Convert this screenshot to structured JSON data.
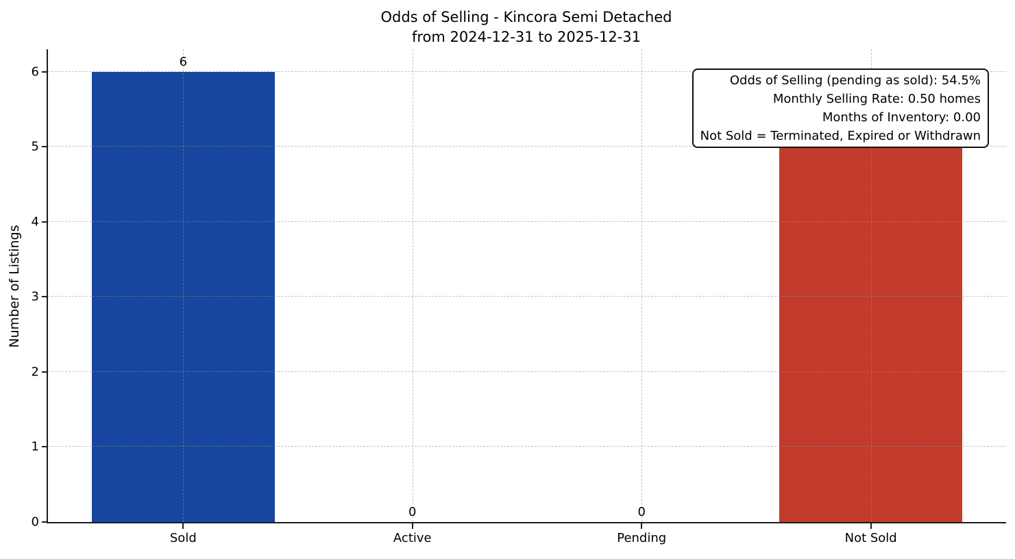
{
  "title": {
    "line1": "Odds of Selling - Kincora Semi Detached",
    "line2": "from 2024-12-31 to 2025-12-31"
  },
  "chart_data": {
    "type": "bar",
    "title": "Odds of Selling - Kincora Semi Detached\nfrom 2024-12-31 to 2025-12-31",
    "categories": [
      "Sold",
      "Active",
      "Pending",
      "Not Sold"
    ],
    "values": [
      6,
      0,
      0,
      5
    ],
    "bar_labels": [
      "6",
      "0",
      "0",
      null
    ],
    "bar_colors": [
      "#17479e",
      null,
      null,
      "#c23b2b"
    ],
    "xlabel": "",
    "ylabel": "Number of Listings",
    "yticks": [
      0,
      1,
      2,
      3,
      4,
      5,
      6
    ],
    "ylim": [
      0,
      6.3
    ],
    "xlim": [
      -0.59,
      3.59
    ],
    "bar_width_fraction": 0.8,
    "grid": true,
    "grid_linestyle": "dashed",
    "grid_on_top_of_bars": true,
    "legend": "none",
    "annotation_lines": [
      "Odds of Selling (pending as sold): 54.5%",
      "Monthly Selling Rate: 0.50 homes",
      "Months of Inventory: 0.00",
      "Not Sold = Terminated, Expired or Withdrawn"
    ],
    "annotation_position": "top-right"
  },
  "colors": {
    "sold_bar": "#17479e",
    "not_sold_bar": "#c23b2b",
    "axis": "#1b1b1b",
    "grid": "#919191",
    "background": "#ffffff",
    "text": "#000000"
  }
}
